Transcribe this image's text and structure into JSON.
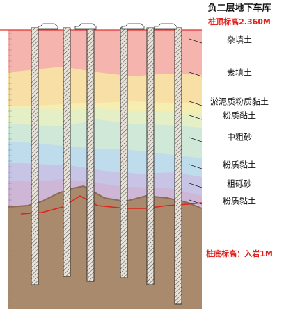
{
  "header": {
    "title": "负二层地下车库",
    "pile_top": "桩顶标高2.360M"
  },
  "layers": [
    {
      "label": "杂填土"
    },
    {
      "label": "素填土"
    },
    {
      "label": "淤泥质粉质黏土"
    },
    {
      "label": "粉质黏土"
    },
    {
      "label": "中粗砂"
    },
    {
      "label": "粉质黏土"
    },
    {
      "label": "粗砾砂"
    },
    {
      "label": "粉质黏土"
    }
  ],
  "pile_bottom": "桩底标高：入岩1M"
}
